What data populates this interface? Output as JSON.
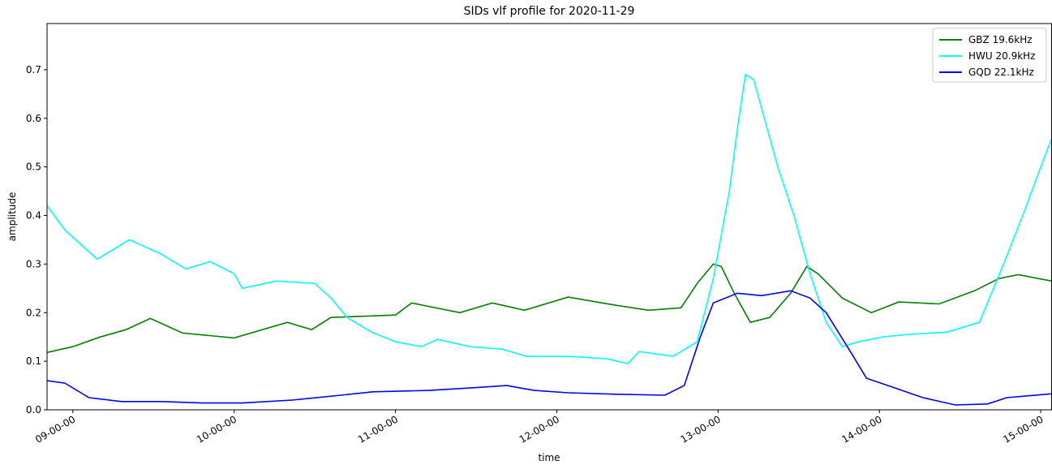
{
  "chart_data": {
    "type": "line",
    "title": "SIDs vlf profile for 2020-11-29",
    "xlabel": "time",
    "ylabel": "amplitude",
    "xlim": [
      8.84,
      15.07
    ],
    "xticks": [
      {
        "value": 9,
        "label": "09-00-00"
      },
      {
        "value": 10,
        "label": "10-00-00"
      },
      {
        "value": 11,
        "label": "11-00-00"
      },
      {
        "value": 12,
        "label": "12-00-00"
      },
      {
        "value": 13,
        "label": "13-00-00"
      },
      {
        "value": 14,
        "label": "14-00-00"
      },
      {
        "value": 15,
        "label": "15-00-00"
      }
    ],
    "ylim": [
      0,
      0.795
    ],
    "yticks": [
      {
        "value": 0,
        "label": "0.0"
      },
      0.1,
      0.2,
      0.3,
      0.4,
      0.5,
      0.6,
      0.7
    ],
    "legend": "upper right",
    "series": [
      {
        "name": "GBZ 19.6kHz",
        "color": "#008000",
        "x": [
          8.84,
          9.0,
          9.17,
          9.33,
          9.48,
          9.68,
          10.0,
          10.33,
          10.48,
          10.6,
          11.0,
          11.1,
          11.4,
          11.6,
          11.8,
          12.07,
          12.37,
          12.57,
          12.77,
          12.87,
          12.97,
          13.02,
          13.1,
          13.2,
          13.32,
          13.45,
          13.55,
          13.62,
          13.77,
          13.95,
          14.12,
          14.37,
          14.59,
          14.74,
          14.86,
          15.07
        ],
        "values": [
          0.118,
          0.13,
          0.15,
          0.165,
          0.188,
          0.158,
          0.148,
          0.18,
          0.165,
          0.19,
          0.195,
          0.22,
          0.2,
          0.22,
          0.205,
          0.232,
          0.215,
          0.205,
          0.21,
          0.26,
          0.3,
          0.295,
          0.24,
          0.18,
          0.19,
          0.24,
          0.295,
          0.28,
          0.23,
          0.2,
          0.222,
          0.218,
          0.245,
          0.27,
          0.278,
          0.265
        ]
      },
      {
        "name": "HWU 20.9kHz",
        "color": "#00ffff",
        "x": [
          8.84,
          8.95,
          9.05,
          9.15,
          9.35,
          9.55,
          9.7,
          9.85,
          10.0,
          10.05,
          10.26,
          10.5,
          10.6,
          10.7,
          10.85,
          11.0,
          11.16,
          11.26,
          11.46,
          11.66,
          11.81,
          12.07,
          12.31,
          12.44,
          12.51,
          12.72,
          12.87,
          12.97,
          13.07,
          13.12,
          13.17,
          13.22,
          13.27,
          13.37,
          13.47,
          13.57,
          13.67,
          13.77,
          13.87,
          14.02,
          14.17,
          14.42,
          14.62,
          14.77,
          14.9,
          15.0,
          15.07
        ],
        "values": [
          0.42,
          0.37,
          0.34,
          0.31,
          0.35,
          0.32,
          0.29,
          0.305,
          0.28,
          0.25,
          0.265,
          0.26,
          0.23,
          0.19,
          0.16,
          0.14,
          0.13,
          0.145,
          0.13,
          0.125,
          0.11,
          0.11,
          0.105,
          0.095,
          0.12,
          0.11,
          0.14,
          0.27,
          0.45,
          0.58,
          0.69,
          0.68,
          0.62,
          0.5,
          0.4,
          0.28,
          0.18,
          0.13,
          0.14,
          0.15,
          0.155,
          0.16,
          0.18,
          0.3,
          0.41,
          0.5,
          0.56
        ]
      },
      {
        "name": "GQD 22.1kHz",
        "color": "#0000ff",
        "x": [
          8.84,
          8.95,
          9.1,
          9.3,
          9.55,
          9.8,
          10.05,
          10.36,
          10.66,
          10.86,
          11.21,
          11.46,
          11.69,
          11.86,
          12.07,
          12.37,
          12.67,
          12.79,
          12.89,
          12.97,
          13.12,
          13.27,
          13.45,
          13.57,
          13.67,
          13.82,
          13.92,
          14.07,
          14.27,
          14.47,
          14.67,
          14.79,
          15.07
        ],
        "values": [
          0.06,
          0.055,
          0.025,
          0.017,
          0.017,
          0.014,
          0.014,
          0.02,
          0.03,
          0.037,
          0.04,
          0.045,
          0.05,
          0.04,
          0.035,
          0.032,
          0.03,
          0.05,
          0.15,
          0.22,
          0.24,
          0.235,
          0.245,
          0.23,
          0.2,
          0.12,
          0.065,
          0.048,
          0.025,
          0.01,
          0.012,
          0.025,
          0.033
        ]
      }
    ]
  }
}
